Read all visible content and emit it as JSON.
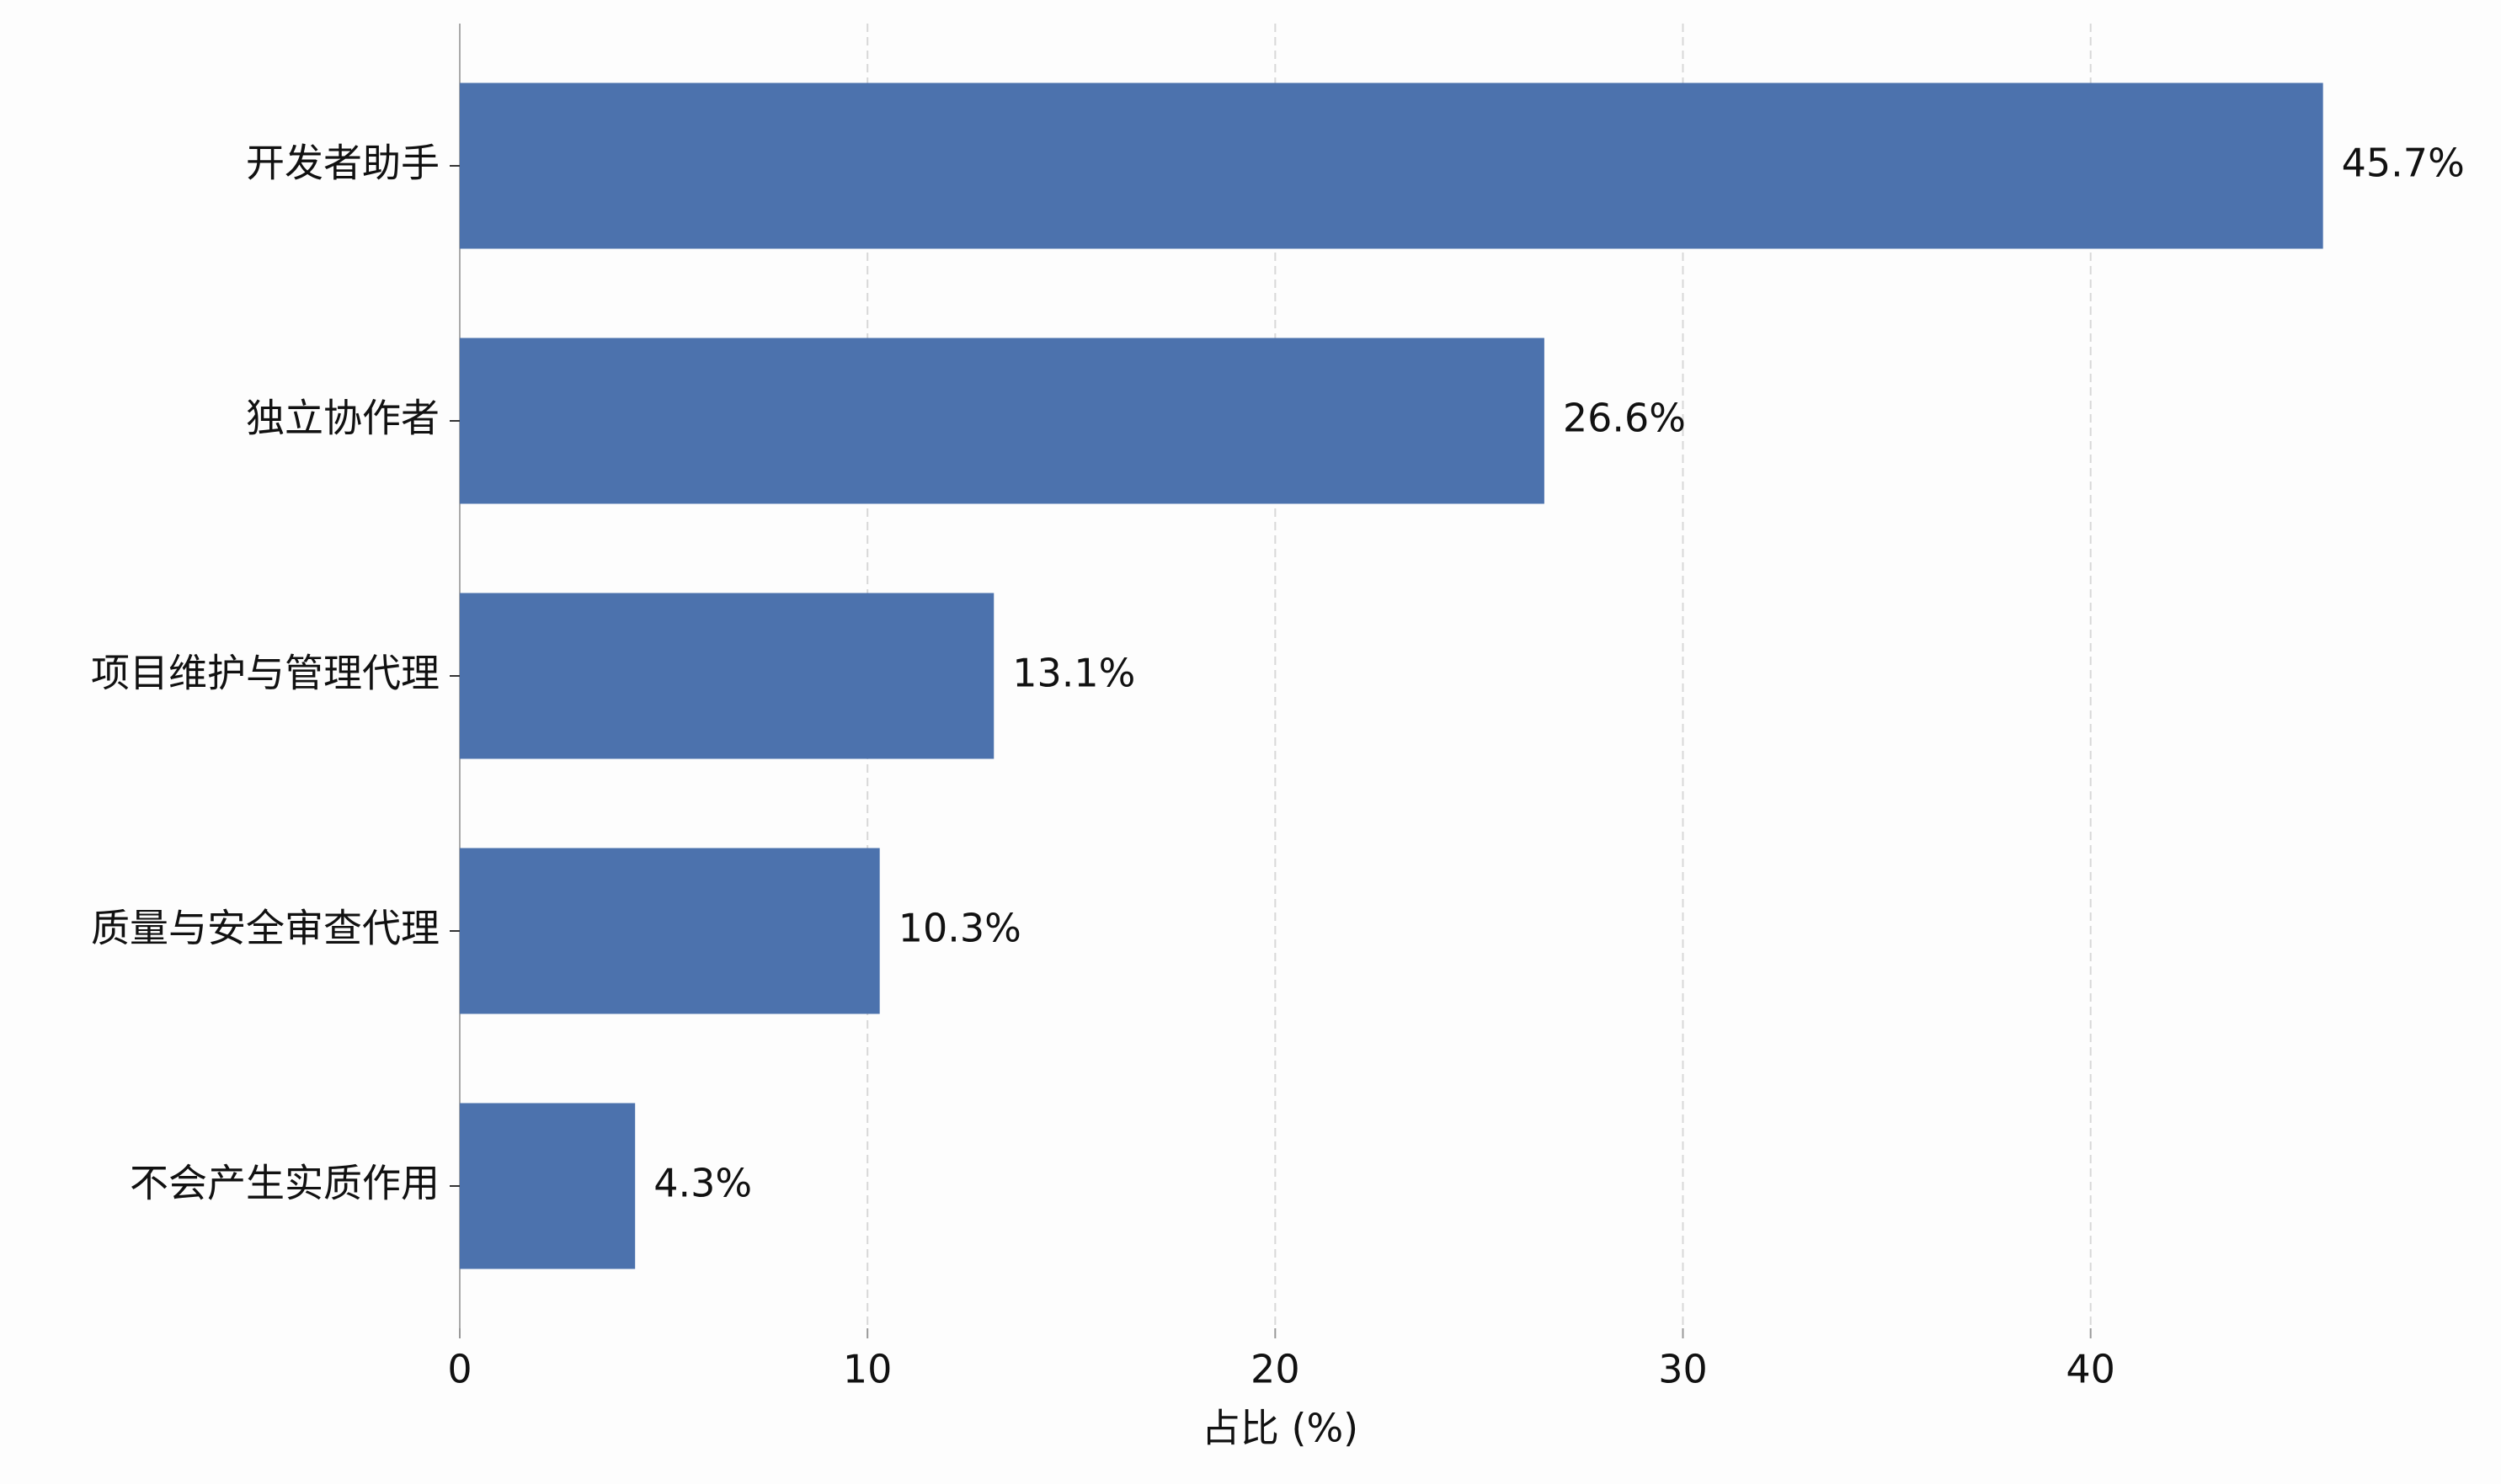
{
  "chart_data": {
    "type": "barh",
    "categories": [
      "开发者助手",
      "独立协作者",
      "项目维护与管理代理",
      "质量与安全审查代理",
      "不会产生实质作用"
    ],
    "values": [
      45.7,
      26.6,
      13.1,
      10.3,
      4.3
    ],
    "value_labels": [
      "45.7%",
      "26.6%",
      "13.1%",
      "10.3%",
      "4.3%"
    ],
    "color": "#4c72ad",
    "xlabel": "占比 (%)",
    "xlim": [
      0,
      48
    ],
    "xticks": [
      0,
      10,
      20,
      30,
      40
    ],
    "grid": true
  }
}
